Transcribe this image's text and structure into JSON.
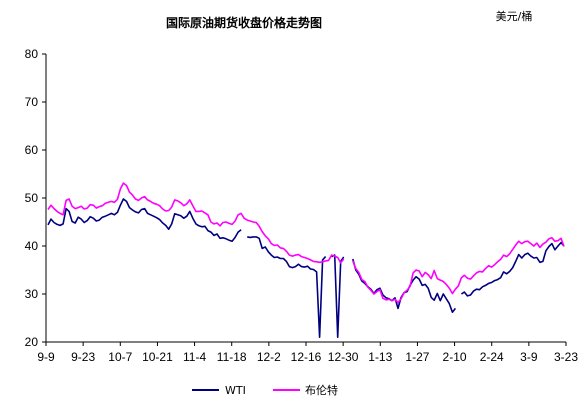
{
  "chart_data": {
    "type": "line",
    "title": "国际原油期货收盘价格走势图",
    "unit": "美元/桶",
    "ylim": [
      20,
      80
    ],
    "yticks": [
      20,
      30,
      40,
      50,
      60,
      70,
      80
    ],
    "x_tick_labels": [
      "9-9",
      "9-23",
      "10-7",
      "10-21",
      "11-4",
      "11-18",
      "12-2",
      "12-16",
      "12-30",
      "1-13",
      "1-27",
      "2-10",
      "2-24",
      "3-9",
      "3-23"
    ],
    "grid": false,
    "legend_position": "bottom",
    "colors": {
      "WTI": "#000080",
      "布伦特": "#ff00ff"
    },
    "series": [
      {
        "name": "WTI",
        "values": [
          44.4,
          45.6,
          44.9,
          44.5,
          44.3,
          44.6,
          47.8,
          47.2,
          45.1,
          44.8,
          46.0,
          45.6,
          44.9,
          45.3,
          46.1,
          45.8,
          45.2,
          45.4,
          46.0,
          46.2,
          46.5,
          46.8,
          46.5,
          47.0,
          48.5,
          49.8,
          49.3,
          48.0,
          47.5,
          47.1,
          46.9,
          47.6,
          47.8,
          46.8,
          46.5,
          46.2,
          45.9,
          45.5,
          44.8,
          44.3,
          43.5,
          44.6,
          46.7,
          46.5,
          46.3,
          45.8,
          46.2,
          47.2,
          45.8,
          44.6,
          44.2,
          44.0,
          44.1,
          43.2,
          42.9,
          42.2,
          42.5,
          41.6,
          41.7,
          41.5,
          41.2,
          41.0,
          41.8,
          42.9,
          43.4,
          null,
          41.9,
          41.8,
          41.9,
          41.9,
          41.6,
          39.5,
          39.8,
          38.8,
          38.1,
          37.6,
          37.7,
          37.4,
          37.4,
          36.8,
          35.7,
          35.5,
          35.7,
          36.2,
          35.7,
          35.6,
          35.8,
          35.2,
          35.1,
          34.6,
          21.0,
          37.1,
          37.8,
          null,
          37.8,
          38.1,
          21.0,
          36.8,
          37.7,
          null,
          null,
          37.3,
          35.0,
          34.1,
          32.7,
          32.2,
          31.5,
          31.0,
          30.1,
          30.9,
          31.2,
          29.8,
          29.2,
          29.0,
          28.6,
          29.2,
          27.0,
          29.3,
          30.3,
          30.5,
          31.8,
          32.9,
          33.6,
          33.1,
          31.8,
          32.0,
          31.2,
          29.3,
          28.7,
          30.1,
          28.6,
          30.0,
          29.0,
          28.0,
          26.2,
          27.0,
          null,
          30.0,
          30.4,
          29.6,
          29.8,
          30.6,
          31.0,
          30.9,
          31.5,
          31.8,
          32.2,
          32.4,
          32.8,
          33.0,
          33.4,
          34.6,
          34.2,
          34.7,
          35.5,
          36.8,
          38.2,
          37.5,
          38.2,
          38.5,
          37.9,
          37.5,
          37.6,
          36.6,
          36.8,
          39.0,
          39.9,
          40.5,
          39.2,
          40.0,
          40.7,
          40.0
        ]
      },
      {
        "name": "布伦特",
        "values": [
          47.6,
          48.5,
          47.8,
          47.2,
          46.8,
          46.5,
          49.5,
          49.8,
          48.3,
          47.8,
          48.0,
          48.3,
          47.7,
          47.9,
          48.6,
          48.5,
          47.9,
          48.2,
          48.4,
          48.9,
          49.1,
          49.3,
          49.1,
          49.7,
          51.9,
          53.1,
          52.6,
          51.2,
          50.6,
          49.8,
          49.5,
          50.0,
          50.3,
          49.6,
          49.3,
          48.9,
          48.7,
          48.4,
          47.7,
          47.3,
          47.4,
          48.1,
          49.6,
          49.4,
          49.0,
          48.4,
          48.8,
          49.6,
          48.4,
          47.2,
          47.2,
          47.3,
          46.9,
          46.5,
          45.0,
          44.6,
          44.8,
          44.2,
          44.9,
          45.0,
          44.7,
          44.5,
          45.2,
          46.5,
          46.8,
          45.8,
          45.4,
          45.2,
          45.0,
          44.9,
          44.1,
          43.0,
          42.1,
          41.5,
          40.5,
          40.1,
          40.2,
          39.6,
          39.5,
          38.9,
          38.1,
          37.9,
          38.1,
          38.2,
          37.8,
          37.6,
          37.4,
          37.1,
          36.8,
          36.7,
          36.6,
          36.7,
          36.9,
          37.0,
          38.1,
          37.9,
          37.6,
          36.5,
          37.3,
          null,
          null,
          36.9,
          35.3,
          34.5,
          33.0,
          32.6,
          31.4,
          30.8,
          30.0,
          30.5,
          30.9,
          29.1,
          28.8,
          28.9,
          28.6,
          28.9,
          28.2,
          29.0,
          30.3,
          30.8,
          31.6,
          34.4,
          35.0,
          34.8,
          33.6,
          34.5,
          34.0,
          33.2,
          34.9,
          33.2,
          32.9,
          32.6,
          32.0,
          31.2,
          30.1,
          31.0,
          31.7,
          33.4,
          33.9,
          33.3,
          33.1,
          33.8,
          34.4,
          34.7,
          34.6,
          35.3,
          35.9,
          35.6,
          36.1,
          36.7,
          37.2,
          38.1,
          37.8,
          38.4,
          39.3,
          40.2,
          41.0,
          40.5,
          40.9,
          41.0,
          40.5,
          40.0,
          40.6,
          39.7,
          40.4,
          40.8,
          41.5,
          41.7,
          41.0,
          41.1,
          41.6,
          39.9
        ]
      }
    ]
  }
}
